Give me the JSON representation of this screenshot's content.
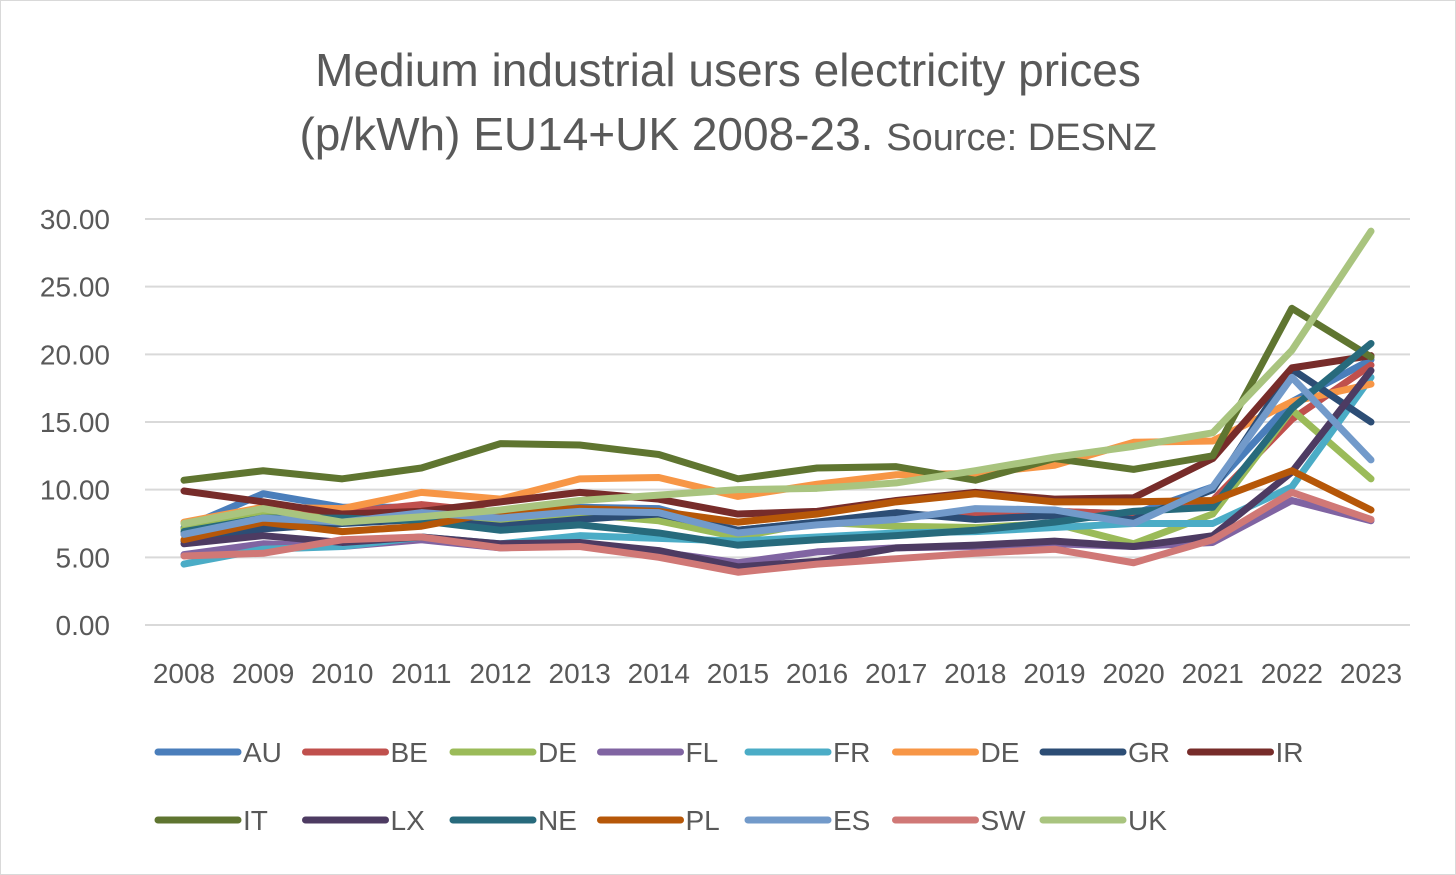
{
  "chart_data": {
    "type": "line",
    "title": "Medium industrial users electricity prices (p/kWh) EU14+UK 2008-23.",
    "subtitle": "Source: DESNZ",
    "xlabel": "",
    "ylabel": "",
    "ylim": [
      0,
      30
    ],
    "yticks": [
      "0.00",
      "5.00",
      "10.00",
      "15.00",
      "20.00",
      "25.00",
      "30.00"
    ],
    "grid": true,
    "legend_placement": "bottom",
    "x": [
      "2008",
      "2009",
      "2010",
      "2011",
      "2012",
      "2013",
      "2014",
      "2015",
      "2016",
      "2017",
      "2018",
      "2019",
      "2020",
      "2021",
      "2022",
      "2023"
    ],
    "series": [
      {
        "name": "AU",
        "color": "#4a7ebb",
        "values": [
          7.2,
          9.7,
          8.7,
          8.7,
          8.2,
          8.7,
          8.6,
          7.0,
          7.6,
          8.0,
          8.2,
          8.4,
          8.2,
          10.2,
          16.5,
          19.6
        ]
      },
      {
        "name": "BE",
        "color": "#c0504d",
        "values": [
          6.7,
          8.2,
          8.3,
          8.9,
          8.3,
          8.6,
          8.2,
          7.0,
          7.5,
          8.0,
          8.3,
          8.4,
          8.2,
          9.2,
          15.2,
          19.2
        ]
      },
      {
        "name": "DE",
        "color": "#9bbb59",
        "values": [
          7.1,
          8.3,
          7.8,
          7.8,
          7.6,
          8.2,
          7.7,
          6.5,
          7.6,
          7.3,
          7.2,
          7.5,
          6.0,
          8.2,
          15.9,
          10.8
        ]
      },
      {
        "name": "FL",
        "color": "#8064a2",
        "values": [
          5.2,
          6.0,
          5.8,
          6.3,
          5.7,
          5.9,
          5.4,
          4.6,
          5.4,
          5.7,
          5.8,
          6.0,
          5.8,
          6.1,
          9.2,
          7.7
        ]
      },
      {
        "name": "FR",
        "color": "#4bacc6",
        "values": [
          4.5,
          5.6,
          5.8,
          6.5,
          6.0,
          6.6,
          6.4,
          6.2,
          6.5,
          6.8,
          6.9,
          7.2,
          7.5,
          7.5,
          10.2,
          18.3
        ]
      },
      {
        "name": "DE",
        "color": "#f79646",
        "values": [
          7.6,
          8.7,
          8.6,
          9.8,
          9.3,
          10.8,
          10.9,
          9.5,
          10.4,
          11.1,
          11.2,
          11.8,
          13.5,
          13.6,
          16.5,
          17.8
        ]
      },
      {
        "name": "GR",
        "color": "#2c4d75",
        "values": [
          6.2,
          7.1,
          7.5,
          7.8,
          7.3,
          7.8,
          8.2,
          7.0,
          7.6,
          8.3,
          7.8,
          8.1,
          7.8,
          10.0,
          18.9,
          15.0
        ]
      },
      {
        "name": "IR",
        "color": "#772c2a",
        "values": [
          9.9,
          9.1,
          8.2,
          8.4,
          9.1,
          9.8,
          9.3,
          8.2,
          8.4,
          9.2,
          9.8,
          9.3,
          9.4,
          12.3,
          19.0,
          19.9
        ]
      },
      {
        "name": "IT",
        "color": "#5f7530",
        "values": [
          10.7,
          11.4,
          10.8,
          11.6,
          13.4,
          13.3,
          12.6,
          10.8,
          11.6,
          11.7,
          10.7,
          12.3,
          11.5,
          12.5,
          23.4,
          19.8
        ]
      },
      {
        "name": "LX",
        "color": "#4d3b62",
        "values": [
          6.0,
          6.6,
          6.1,
          6.5,
          6.0,
          6.1,
          5.5,
          4.3,
          4.7,
          5.7,
          5.9,
          6.2,
          5.8,
          6.6,
          11.3,
          18.8
        ]
      },
      {
        "name": "NE",
        "color": "#276a7c",
        "values": [
          6.9,
          7.9,
          7.9,
          7.7,
          7.0,
          7.4,
          6.8,
          5.9,
          6.3,
          6.6,
          7.0,
          7.6,
          8.4,
          8.7,
          16.0,
          20.8
        ]
      },
      {
        "name": "PL",
        "color": "#b65708",
        "values": [
          6.3,
          7.6,
          6.9,
          7.3,
          8.4,
          8.6,
          8.4,
          7.6,
          8.2,
          9.1,
          9.7,
          9.1,
          9.1,
          9.2,
          11.4,
          8.5
        ]
      },
      {
        "name": "ES",
        "color": "#729aca",
        "values": [
          6.7,
          7.9,
          7.6,
          8.3,
          7.9,
          8.4,
          8.3,
          6.8,
          7.4,
          7.8,
          8.6,
          8.5,
          7.5,
          10.2,
          18.3,
          12.2
        ]
      },
      {
        "name": "SW",
        "color": "#d07876",
        "values": [
          5.1,
          5.3,
          6.3,
          6.5,
          5.7,
          5.8,
          5.0,
          3.9,
          4.5,
          4.9,
          5.3,
          5.6,
          4.6,
          6.3,
          9.8,
          7.8
        ]
      },
      {
        "name": "UK",
        "color": "#a9c47f",
        "values": [
          7.5,
          8.6,
          7.6,
          8.0,
          8.5,
          9.2,
          9.6,
          10.0,
          10.1,
          10.5,
          11.4,
          12.4,
          13.2,
          14.2,
          20.3,
          29.1
        ]
      }
    ]
  }
}
